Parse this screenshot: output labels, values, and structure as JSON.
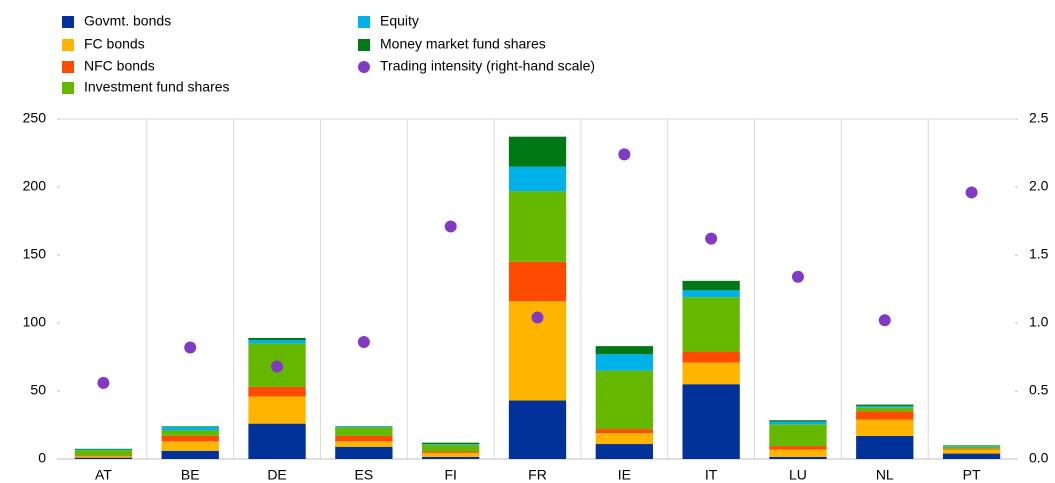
{
  "chart_data": {
    "type": "bar",
    "stacked": true,
    "categories": [
      "AT",
      "BE",
      "DE",
      "ES",
      "FI",
      "FR",
      "IE",
      "IT",
      "LU",
      "NL",
      "PT"
    ],
    "series": [
      {
        "name": "Govmt. bonds",
        "color": "#003299",
        "values": [
          1,
          6,
          26,
          9,
          1.5,
          43,
          11,
          55,
          1.5,
          17,
          4
        ]
      },
      {
        "name": "FC bonds",
        "color": "#ffb400",
        "values": [
          1,
          7,
          20,
          4,
          3,
          73,
          8,
          16,
          5.5,
          12,
          3
        ]
      },
      {
        "name": "NFC bonds",
        "color": "#ff4b00",
        "values": [
          0.5,
          4,
          7,
          4,
          1,
          29,
          3,
          8,
          2.5,
          6,
          0.5
        ]
      },
      {
        "name": "Investment fund shares",
        "color": "#65b800",
        "values": [
          4,
          4,
          32,
          6,
          5,
          52,
          43,
          40,
          16,
          3,
          1.5
        ]
      },
      {
        "name": "Equity",
        "color": "#00b1ea",
        "values": [
          0.5,
          2.5,
          2.5,
          0.5,
          0.5,
          18,
          12,
          5,
          2,
          1,
          0.5
        ]
      },
      {
        "name": "Money market fund shares",
        "color": "#007816",
        "values": [
          0.5,
          0.5,
          1.5,
          0.5,
          1,
          22,
          6,
          7,
          1,
          1,
          0.5
        ]
      },
      {
        "name": "Trading intensity (right-hand scale)",
        "color": "#8139c6",
        "type": "scatter",
        "axis": "y2",
        "values": [
          0.56,
          0.82,
          0.68,
          0.86,
          1.71,
          1.04,
          2.24,
          1.62,
          1.34,
          1.02,
          1.96
        ]
      }
    ],
    "ylim": [
      0,
      250
    ],
    "yticks": [
      0,
      50,
      100,
      150,
      200,
      250
    ],
    "y2lim": [
      0,
      2.5
    ],
    "y2ticks": [
      {
        "value": 0,
        "label": "0.0"
      },
      0.5,
      {
        "value": 1,
        "label": "1.0"
      },
      1.5,
      {
        "value": 2,
        "label": "2.0"
      },
      2.5
    ],
    "grid": "vertical"
  }
}
